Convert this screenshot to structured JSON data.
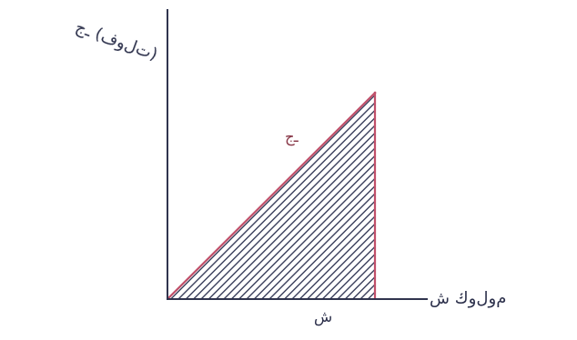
{
  "chart_data": {
    "type": "line",
    "x_label": "ش كولوم",
    "y_label": "جـ (فولت)",
    "annotations": [
      "جـ",
      "ش"
    ],
    "x": [
      0,
      1
    ],
    "values": [
      0,
      1
    ],
    "xlim": [
      0,
      1.25
    ],
    "ylim": [
      0,
      1.4
    ],
    "xticks": [],
    "yticks": [],
    "color": "#c0506a",
    "tick_labels": false,
    "grid": false
  }
}
